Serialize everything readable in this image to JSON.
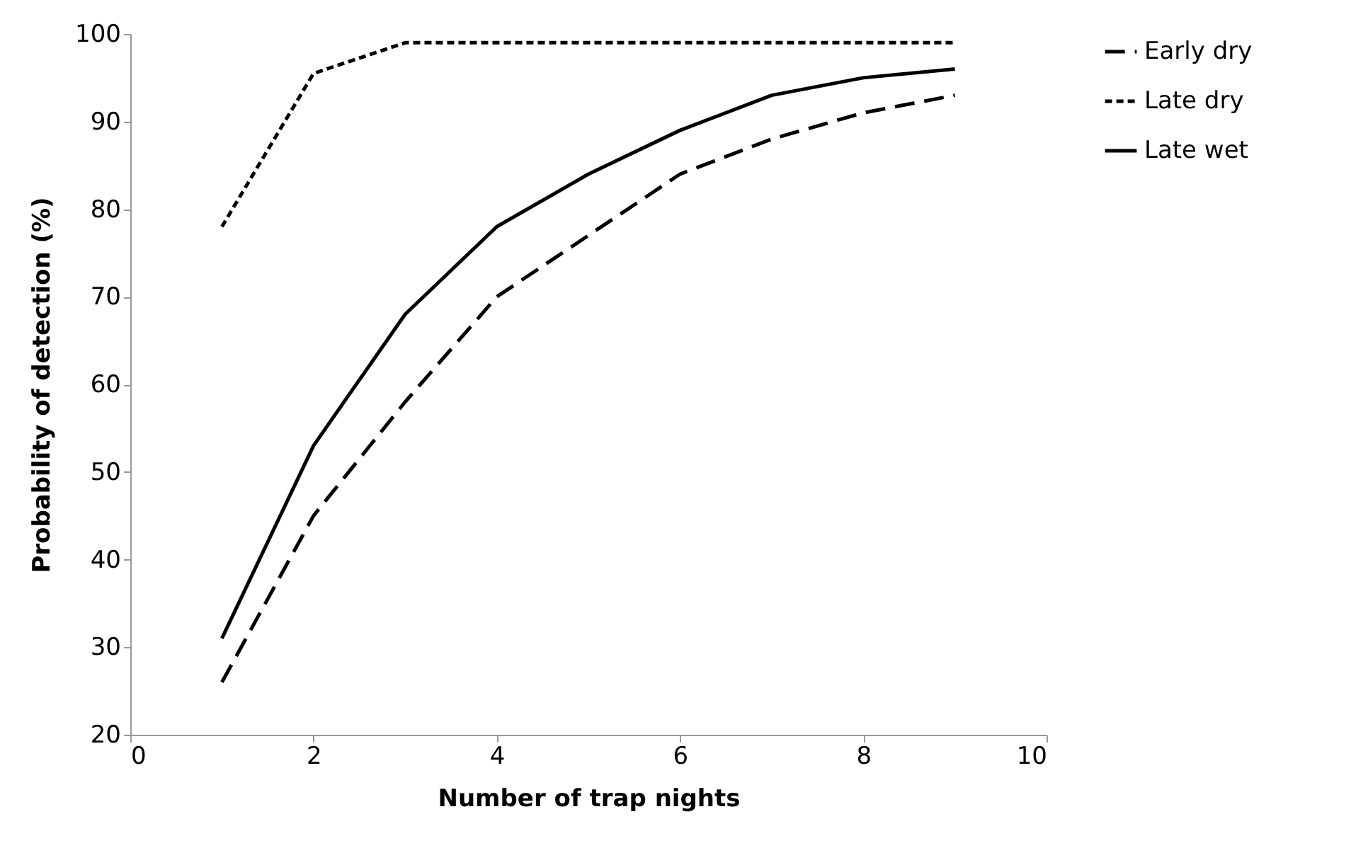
{
  "chart_data": {
    "type": "line",
    "xlabel": "Number of trap nights",
    "ylabel": "Probability of detection (%)",
    "x": [
      1,
      2,
      3,
      4,
      5,
      6,
      7,
      8,
      9
    ],
    "xlim": [
      0,
      10
    ],
    "xticks": [
      0,
      2,
      4,
      6,
      8,
      10
    ],
    "ylim": [
      20,
      100
    ],
    "yticks": [
      20,
      30,
      40,
      50,
      60,
      70,
      80,
      90,
      100
    ],
    "grid": false,
    "legend": "right",
    "marker": "none",
    "series": [
      {
        "name": "Early dry",
        "color": "#000000",
        "line_style": "dashed",
        "values": [
          26,
          45,
          58,
          70,
          77,
          84,
          88,
          91,
          93
        ]
      },
      {
        "name": "Late dry",
        "color": "#000000",
        "line_style": "dotted",
        "values": [
          78,
          95.5,
          99,
          99,
          99,
          99,
          99,
          99,
          99
        ]
      },
      {
        "name": "Late wet",
        "color": "#000000",
        "line_style": "solid",
        "values": [
          31,
          53,
          68,
          78,
          84,
          89,
          93,
          95,
          96
        ]
      }
    ]
  }
}
